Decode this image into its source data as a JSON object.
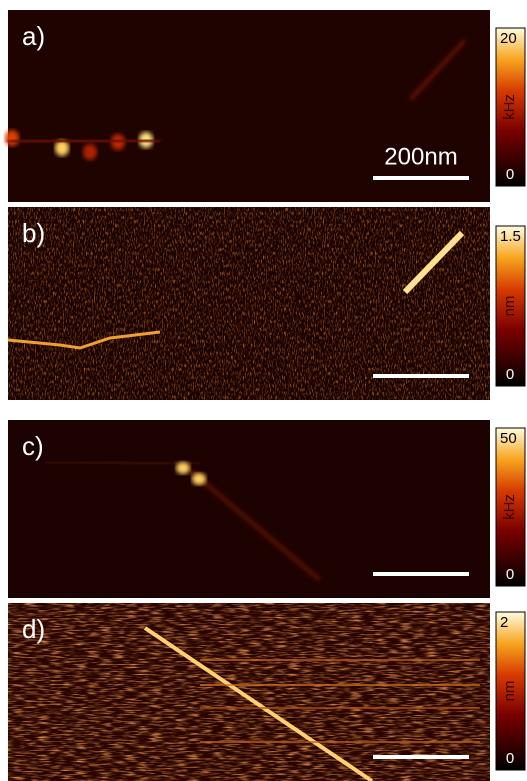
{
  "panels": [
    {
      "label": "a)",
      "scale_bar": "200nm",
      "colorbar": {
        "max": 20,
        "unit": "kHz",
        "min": 0
      }
    },
    {
      "label": "b)",
      "colorbar": {
        "max": 1.5,
        "unit": "nm",
        "min": 0
      }
    },
    {
      "label": "c)",
      "colorbar": {
        "max": 50,
        "unit": "kHz",
        "min": 0
      }
    },
    {
      "label": "d)",
      "colorbar": {
        "max": 2,
        "unit": "nm",
        "min": 0
      }
    }
  ]
}
